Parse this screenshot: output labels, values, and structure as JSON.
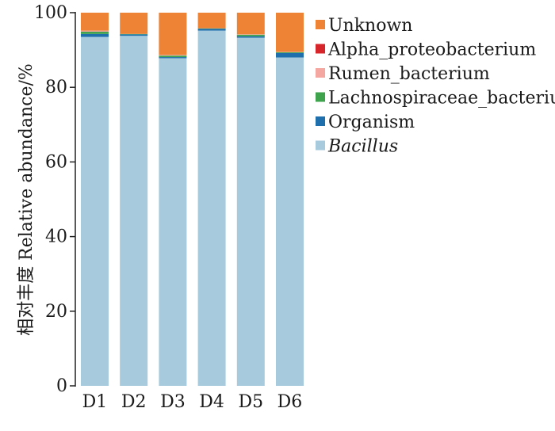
{
  "chart_data": {
    "type": "bar",
    "stacked": true,
    "categories": [
      "D1",
      "D2",
      "D3",
      "D4",
      "D5",
      "D6"
    ],
    "ylabel": "相对丰度 Relative abundance/%",
    "ylim": [
      0,
      100
    ],
    "yticks": [
      0,
      20,
      40,
      60,
      80,
      100
    ],
    "legend_position": "top-right",
    "series": [
      {
        "name": "Bacillus",
        "color": "#a7cadc",
        "italic": true,
        "values": [
          93.5,
          93.8,
          87.8,
          95.2,
          93.3,
          88.0
        ]
      },
      {
        "name": "Organism",
        "color": "#1f6fad",
        "values": [
          0.8,
          0.4,
          0.3,
          0.5,
          0.4,
          1.2
        ]
      },
      {
        "name": "Lachnospiraceae_bacterium",
        "color": "#3fa34d",
        "values": [
          0.6,
          0.1,
          0.4,
          0.1,
          0.4,
          0.2
        ]
      },
      {
        "name": "Rumen_bacterium",
        "color": "#f4a6a0",
        "values": [
          0.3,
          0.0,
          0.2,
          0.0,
          0.1,
          0.1
        ]
      },
      {
        "name": "Alpha_proteobacterium",
        "color": "#d7262b",
        "values": [
          0.0,
          0.0,
          0.0,
          0.0,
          0.0,
          0.0
        ]
      },
      {
        "name": "Unknown",
        "color": "#ee8336",
        "values": [
          4.8,
          5.7,
          11.3,
          4.2,
          5.8,
          10.5
        ]
      }
    ]
  }
}
